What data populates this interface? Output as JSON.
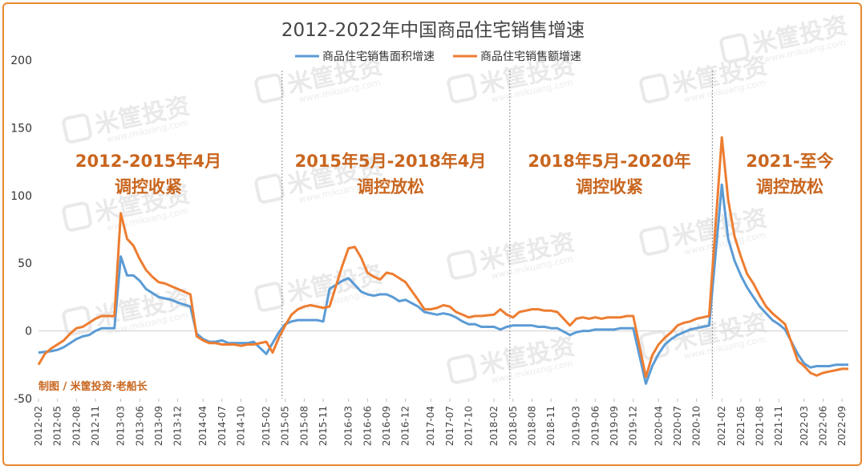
{
  "chart_data": {
    "type": "line",
    "title": "2012-2022年中国商品住宅销售增速",
    "ylim": [
      -50,
      200
    ],
    "yticks": [
      -50,
      0,
      50,
      100,
      150,
      200
    ],
    "legend_position": "top-center",
    "grid": false,
    "series_colors": [
      "#5b9bd5",
      "#ed7d31"
    ],
    "x_tick_labels": [
      "2012-02",
      "2012-05",
      "2012-08",
      "2012-11",
      "2013-03",
      "2013-06",
      "2013-09",
      "2013-12",
      "2014-04",
      "2014-07",
      "2014-10",
      "2015-02",
      "2015-05",
      "2015-08",
      "2015-11",
      "2016-03",
      "2016-06",
      "2016-09",
      "2016-12",
      "2017-04",
      "2017-07",
      "2017-10",
      "2018-02",
      "2018-05",
      "2018-08",
      "2018-11",
      "2019-03",
      "2019-06",
      "2019-09",
      "2019-12",
      "2020-04",
      "2020-07",
      "2020-10",
      "2021-02",
      "2021-05",
      "2021-08",
      "2021-11",
      "2022-03",
      "2022-06",
      "2022-09"
    ],
    "x": [
      "2012-02",
      "2012-03",
      "2012-04",
      "2012-05",
      "2012-06",
      "2012-07",
      "2012-08",
      "2012-09",
      "2012-10",
      "2012-11",
      "2012-12",
      "2013-02",
      "2013-03",
      "2013-04",
      "2013-05",
      "2013-06",
      "2013-07",
      "2013-08",
      "2013-09",
      "2013-10",
      "2013-11",
      "2013-12",
      "2014-02",
      "2014-03",
      "2014-04",
      "2014-05",
      "2014-06",
      "2014-07",
      "2014-08",
      "2014-09",
      "2014-10",
      "2014-11",
      "2014-12",
      "2015-02",
      "2015-03",
      "2015-04",
      "2015-05",
      "2015-06",
      "2015-07",
      "2015-08",
      "2015-09",
      "2015-10",
      "2015-11",
      "2015-12",
      "2016-02",
      "2016-03",
      "2016-04",
      "2016-05",
      "2016-06",
      "2016-07",
      "2016-08",
      "2016-09",
      "2016-10",
      "2016-11",
      "2016-12",
      "2017-02",
      "2017-03",
      "2017-04",
      "2017-05",
      "2017-06",
      "2017-07",
      "2017-08",
      "2017-09",
      "2017-10",
      "2017-11",
      "2017-12",
      "2018-02",
      "2018-03",
      "2018-04",
      "2018-05",
      "2018-06",
      "2018-07",
      "2018-08",
      "2018-09",
      "2018-10",
      "2018-11",
      "2018-12",
      "2019-02",
      "2019-03",
      "2019-04",
      "2019-05",
      "2019-06",
      "2019-07",
      "2019-08",
      "2019-09",
      "2019-10",
      "2019-11",
      "2019-12",
      "2020-02",
      "2020-03",
      "2020-04",
      "2020-05",
      "2020-06",
      "2020-07",
      "2020-08",
      "2020-09",
      "2020-10",
      "2020-11",
      "2020-12",
      "2021-02",
      "2021-03",
      "2021-04",
      "2021-05",
      "2021-06",
      "2021-07",
      "2021-08",
      "2021-09",
      "2021-10",
      "2021-11",
      "2021-12",
      "2022-02",
      "2022-03",
      "2022-04",
      "2022-05",
      "2022-06",
      "2022-07",
      "2022-08",
      "2022-09",
      "2022-10"
    ],
    "series": [
      {
        "name": "商品住宅销售面积增速",
        "values": [
          -16,
          -15.5,
          -15,
          -14,
          -12,
          -9,
          -6,
          -4,
          -3,
          0,
          2,
          2,
          55,
          41,
          41,
          37,
          31,
          28,
          25,
          24,
          23,
          21,
          18,
          -2,
          -6,
          -8,
          -8,
          -7,
          -9,
          -9,
          -9,
          -9,
          -8,
          -17,
          -9,
          -1,
          5,
          7,
          8,
          8,
          8,
          8,
          7,
          31,
          37,
          39,
          34,
          29,
          27,
          26,
          27,
          27,
          25,
          22,
          23,
          18,
          14,
          13,
          12,
          13,
          12,
          10,
          7,
          5,
          5,
          3,
          3,
          1,
          3,
          4,
          4,
          4,
          4,
          3,
          3,
          2,
          2,
          -3,
          -1,
          0,
          0,
          1,
          1,
          1,
          1,
          2,
          2,
          2,
          -39,
          -26,
          -17,
          -10,
          -6,
          -3,
          -1,
          1,
          2,
          3,
          4,
          108,
          68,
          52,
          41,
          32,
          25,
          18,
          13,
          8,
          5,
          1,
          -17,
          -24,
          -27,
          -26,
          -26,
          -26,
          -25,
          -25,
          -25
        ]
      },
      {
        "name": "商品住宅销售额增速",
        "values": [
          -25,
          -17,
          -13,
          -10,
          -7,
          -2,
          2,
          3,
          6,
          9,
          11,
          11,
          87,
          68,
          63,
          53,
          45,
          40,
          36,
          35,
          33,
          31,
          27,
          -4,
          -7,
          -9,
          -9,
          -10,
          -10,
          -10,
          -11,
          -10,
          -10,
          -8,
          -16,
          -5,
          4,
          12,
          16,
          18,
          19,
          18,
          17,
          18,
          48,
          61,
          62,
          54,
          43,
          40,
          38,
          43,
          42,
          39,
          36,
          23,
          16,
          16,
          17,
          19,
          18,
          14,
          12,
          10,
          11,
          11,
          12,
          16,
          12,
          10,
          14,
          15,
          16,
          16,
          15,
          15,
          14,
          4,
          9,
          10,
          9,
          10,
          9,
          10,
          10,
          10,
          11,
          11,
          -34,
          -18,
          -10,
          -5,
          -1,
          4,
          6,
          7,
          9,
          10,
          11,
          143,
          97,
          70,
          55,
          42,
          35,
          26,
          18,
          13,
          9,
          5,
          -22,
          -26,
          -31,
          -33,
          -31,
          -30,
          -29,
          -28,
          -28
        ]
      }
    ],
    "annotations": [
      {
        "line1": "2012-2015年4月",
        "line2": "调控收紧"
      },
      {
        "line1": "2015年5月-2018年4月",
        "line2": "调控放松"
      },
      {
        "line1": "2018年5月-2020年",
        "line2": "调控收紧"
      },
      {
        "line1": "2021-至今",
        "line2": "调控放松"
      }
    ],
    "period_divider_after": [
      "2015-04",
      "2018-04",
      "2020-12"
    ],
    "credit": "制图 / 米筐投资·老船长"
  },
  "watermark": {
    "brand": "米筐投资",
    "site": "www.mikuang.com"
  }
}
